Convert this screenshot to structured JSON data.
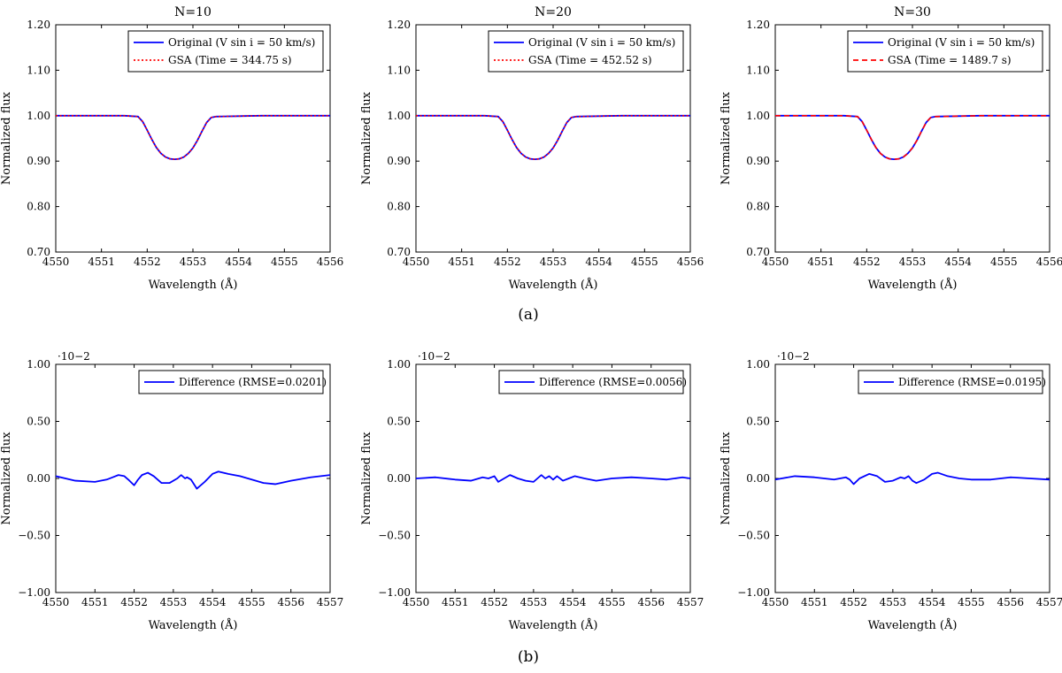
{
  "captions": {
    "a": "(a)",
    "b": "(b)"
  },
  "colors": {
    "original": "#0000ff",
    "gsa": "#ff0000",
    "difference": "#0000ff"
  },
  "chart_data": [
    {
      "type": "line",
      "title": "N=10",
      "xlabel": "Wavelength (Å)",
      "ylabel": "Normalized flux",
      "xlim": [
        4550,
        4556
      ],
      "ylim": [
        0.7,
        1.2
      ],
      "xticks": [
        "4550",
        "4551",
        "4552",
        "4553",
        "4554",
        "4555",
        "4556"
      ],
      "yticks": [
        "0.70",
        "0.80",
        "0.90",
        "1.00",
        "1.10",
        "1.20"
      ],
      "legend_position": "top-right",
      "series": [
        {
          "name": "Original (V sin i = 50 km/s)",
          "style": "solid",
          "x": [
            4550.0,
            4550.5,
            4551.0,
            4551.5,
            4551.8,
            4551.9,
            4552.0,
            4552.1,
            4552.2,
            4552.3,
            4552.4,
            4552.5,
            4552.6,
            4552.7,
            4552.8,
            4552.9,
            4553.0,
            4553.1,
            4553.2,
            4553.3,
            4553.4,
            4553.5,
            4554.0,
            4554.5,
            4555.0,
            4555.5,
            4556.0
          ],
          "y": [
            1.0,
            1.0,
            1.0,
            1.0,
            0.998,
            0.987,
            0.968,
            0.948,
            0.93,
            0.917,
            0.909,
            0.905,
            0.904,
            0.905,
            0.909,
            0.917,
            0.929,
            0.946,
            0.966,
            0.985,
            0.996,
            0.998,
            0.999,
            1.0,
            1.0,
            1.0,
            1.0
          ]
        },
        {
          "name": "GSA (Time = 344.75 s)",
          "style": "dotted",
          "x": [
            4550.0,
            4550.5,
            4551.0,
            4551.5,
            4551.8,
            4551.9,
            4552.0,
            4552.1,
            4552.2,
            4552.3,
            4552.4,
            4552.5,
            4552.6,
            4552.7,
            4552.8,
            4552.9,
            4553.0,
            4553.1,
            4553.2,
            4553.3,
            4553.4,
            4553.5,
            4554.0,
            4554.5,
            4555.0,
            4555.5,
            4556.0
          ],
          "y": [
            1.0,
            1.0,
            1.0,
            1.0,
            0.998,
            0.987,
            0.968,
            0.948,
            0.93,
            0.917,
            0.909,
            0.905,
            0.904,
            0.905,
            0.909,
            0.917,
            0.929,
            0.946,
            0.966,
            0.985,
            0.996,
            0.998,
            0.999,
            1.0,
            1.0,
            1.0,
            1.0
          ]
        }
      ]
    },
    {
      "type": "line",
      "title": "N=20",
      "xlabel": "Wavelength (Å)",
      "ylabel": "Normalized flux",
      "xlim": [
        4550,
        4556
      ],
      "ylim": [
        0.7,
        1.2
      ],
      "xticks": [
        "4550",
        "4551",
        "4552",
        "4553",
        "4554",
        "4555",
        "4556"
      ],
      "yticks": [
        "0.70",
        "0.80",
        "0.90",
        "1.00",
        "1.10",
        "1.20"
      ],
      "legend_position": "top-right",
      "series": [
        {
          "name": "Original (V sin i = 50 km/s)",
          "style": "solid",
          "x": [
            4550.0,
            4550.5,
            4551.0,
            4551.5,
            4551.8,
            4551.9,
            4552.0,
            4552.1,
            4552.2,
            4552.3,
            4552.4,
            4552.5,
            4552.6,
            4552.7,
            4552.8,
            4552.9,
            4553.0,
            4553.1,
            4553.2,
            4553.3,
            4553.4,
            4553.5,
            4554.0,
            4554.5,
            4555.0,
            4555.5,
            4556.0
          ],
          "y": [
            1.0,
            1.0,
            1.0,
            1.0,
            0.998,
            0.987,
            0.968,
            0.948,
            0.93,
            0.917,
            0.909,
            0.905,
            0.904,
            0.905,
            0.909,
            0.917,
            0.929,
            0.946,
            0.966,
            0.985,
            0.996,
            0.998,
            0.999,
            1.0,
            1.0,
            1.0,
            1.0
          ]
        },
        {
          "name": "GSA (Time = 452.52 s)",
          "style": "dotted",
          "x": [
            4550.0,
            4550.5,
            4551.0,
            4551.5,
            4551.8,
            4551.9,
            4552.0,
            4552.1,
            4552.2,
            4552.3,
            4552.4,
            4552.5,
            4552.6,
            4552.7,
            4552.8,
            4552.9,
            4553.0,
            4553.1,
            4553.2,
            4553.3,
            4553.4,
            4553.5,
            4554.0,
            4554.5,
            4555.0,
            4555.5,
            4556.0
          ],
          "y": [
            1.0,
            1.0,
            1.0,
            1.0,
            0.998,
            0.987,
            0.968,
            0.948,
            0.93,
            0.917,
            0.909,
            0.905,
            0.904,
            0.905,
            0.909,
            0.917,
            0.929,
            0.946,
            0.966,
            0.985,
            0.996,
            0.998,
            0.999,
            1.0,
            1.0,
            1.0,
            1.0
          ]
        }
      ]
    },
    {
      "type": "line",
      "title": "N=30",
      "xlabel": "Wavelength (Å)",
      "ylabel": "Normalized flux",
      "xlim": [
        4550,
        4556
      ],
      "ylim": [
        0.7,
        1.2
      ],
      "xticks": [
        "4550",
        "4551",
        "4552",
        "4553",
        "4554",
        "4555",
        "4556"
      ],
      "yticks": [
        "0.70",
        "0.80",
        "0.90",
        "1.00",
        "1.10",
        "1.20"
      ],
      "legend_position": "top-right",
      "series": [
        {
          "name": "Original (V sin i = 50 km/s)",
          "style": "solid",
          "x": [
            4550.0,
            4550.5,
            4551.0,
            4551.5,
            4551.8,
            4551.9,
            4552.0,
            4552.1,
            4552.2,
            4552.3,
            4552.4,
            4552.5,
            4552.6,
            4552.7,
            4552.8,
            4552.9,
            4553.0,
            4553.1,
            4553.2,
            4553.3,
            4553.4,
            4553.5,
            4554.0,
            4554.5,
            4555.0,
            4555.5,
            4556.0
          ],
          "y": [
            1.0,
            1.0,
            1.0,
            1.0,
            0.998,
            0.987,
            0.968,
            0.948,
            0.93,
            0.917,
            0.909,
            0.905,
            0.904,
            0.905,
            0.909,
            0.917,
            0.929,
            0.946,
            0.966,
            0.985,
            0.996,
            0.998,
            0.999,
            1.0,
            1.0,
            1.0,
            1.0
          ]
        },
        {
          "name": "GSA (Time = 1489.7 s)",
          "style": "dashed",
          "x": [
            4550.0,
            4550.5,
            4551.0,
            4551.5,
            4551.8,
            4551.9,
            4552.0,
            4552.1,
            4552.2,
            4552.3,
            4552.4,
            4552.5,
            4552.6,
            4552.7,
            4552.8,
            4552.9,
            4553.0,
            4553.1,
            4553.2,
            4553.3,
            4553.4,
            4553.5,
            4554.0,
            4554.5,
            4555.0,
            4555.5,
            4556.0
          ],
          "y": [
            1.0,
            1.0,
            1.0,
            1.0,
            0.998,
            0.987,
            0.968,
            0.948,
            0.93,
            0.917,
            0.909,
            0.905,
            0.904,
            0.905,
            0.909,
            0.917,
            0.929,
            0.946,
            0.966,
            0.985,
            0.996,
            0.998,
            0.999,
            1.0,
            1.0,
            1.0,
            1.0
          ]
        }
      ]
    },
    {
      "type": "line",
      "title": "",
      "xlabel": "Wavelength (Å)",
      "ylabel": "Normalized flux",
      "xlim": [
        4550,
        4557
      ],
      "ylim": [
        -1.0,
        1.0
      ],
      "xticks": [
        "4550",
        "4551",
        "4552",
        "4553",
        "4554",
        "4555",
        "4556",
        "4557"
      ],
      "yticks": [
        "−1.00",
        "−0.50",
        "0.00",
        "0.50",
        "1.00"
      ],
      "y_exponent": "·10−2",
      "legend_position": "top-right",
      "series": [
        {
          "name": "Difference (RMSE=0.0201)",
          "style": "solid",
          "x": [
            4550.0,
            4550.5,
            4551.0,
            4551.3,
            4551.6,
            4551.75,
            4551.85,
            4552.0,
            4552.1,
            4552.2,
            4552.35,
            4552.5,
            4552.7,
            4552.9,
            4553.1,
            4553.2,
            4553.3,
            4553.35,
            4553.45,
            4553.6,
            4553.8,
            4554.0,
            4554.15,
            4554.4,
            4554.7,
            4555.0,
            4555.3,
            4555.6,
            4556.0,
            4556.5,
            4557.0
          ],
          "y": [
            0.02,
            -0.02,
            -0.03,
            -0.01,
            0.03,
            0.02,
            -0.01,
            -0.06,
            -0.01,
            0.03,
            0.05,
            0.02,
            -0.04,
            -0.04,
            0.0,
            0.03,
            0.0,
            0.01,
            -0.01,
            -0.09,
            -0.03,
            0.04,
            0.06,
            0.04,
            0.02,
            -0.01,
            -0.04,
            -0.05,
            -0.02,
            0.01,
            0.03
          ]
        }
      ]
    },
    {
      "type": "line",
      "title": "",
      "xlabel": "Wavelength (Å)",
      "ylabel": "Normalized flux",
      "xlim": [
        4550,
        4557
      ],
      "ylim": [
        -1.0,
        1.0
      ],
      "xticks": [
        "4550",
        "4551",
        "4552",
        "4553",
        "4554",
        "4555",
        "4556",
        "4557"
      ],
      "yticks": [
        "−1.00",
        "−0.50",
        "0.00",
        "0.50",
        "1.00"
      ],
      "y_exponent": "·10−2",
      "legend_position": "top-right",
      "series": [
        {
          "name": "Difference (RMSE=0.0056)",
          "style": "solid",
          "x": [
            4550.0,
            4550.5,
            4551.0,
            4551.4,
            4551.7,
            4551.85,
            4552.0,
            4552.1,
            4552.25,
            4552.4,
            4552.6,
            4552.8,
            4553.0,
            4553.2,
            4553.3,
            4553.4,
            4553.5,
            4553.6,
            4553.75,
            4553.9,
            4554.05,
            4554.3,
            4554.6,
            4555.0,
            4555.5,
            4556.0,
            4556.4,
            4556.8,
            4557.0
          ],
          "y": [
            0.0,
            0.01,
            -0.01,
            -0.02,
            0.01,
            0.0,
            0.02,
            -0.03,
            0.0,
            0.03,
            0.0,
            -0.02,
            -0.03,
            0.03,
            0.0,
            0.02,
            -0.01,
            0.02,
            -0.02,
            0.0,
            0.02,
            0.0,
            -0.02,
            0.0,
            0.01,
            0.0,
            -0.01,
            0.01,
            0.0
          ]
        }
      ]
    },
    {
      "type": "line",
      "title": "",
      "xlabel": "Wavelength (Å)",
      "ylabel": "Normalized flux",
      "xlim": [
        4550,
        4557
      ],
      "ylim": [
        -1.0,
        1.0
      ],
      "xticks": [
        "4550",
        "4551",
        "4552",
        "4553",
        "4554",
        "4555",
        "4556",
        "4557"
      ],
      "yticks": [
        "−1.00",
        "−0.50",
        "0.00",
        "0.50",
        "1.00"
      ],
      "y_exponent": "·10−2",
      "legend_position": "top-right",
      "series": [
        {
          "name": "Difference (RMSE=0.0195)",
          "style": "solid",
          "x": [
            4550.0,
            4550.5,
            4551.0,
            4551.5,
            4551.8,
            4551.9,
            4552.0,
            4552.15,
            4552.4,
            4552.6,
            4552.8,
            4553.0,
            4553.2,
            4553.3,
            4553.4,
            4553.5,
            4553.6,
            4553.8,
            4554.0,
            4554.15,
            4554.4,
            4554.7,
            4555.0,
            4555.5,
            4556.0,
            4556.5,
            4557.0
          ],
          "y": [
            -0.01,
            0.02,
            0.01,
            -0.01,
            0.01,
            -0.01,
            -0.05,
            0.0,
            0.04,
            0.02,
            -0.03,
            -0.02,
            0.01,
            0.0,
            0.02,
            -0.02,
            -0.04,
            -0.01,
            0.04,
            0.05,
            0.02,
            0.0,
            -0.01,
            -0.01,
            0.01,
            0.0,
            -0.01
          ]
        }
      ]
    }
  ]
}
